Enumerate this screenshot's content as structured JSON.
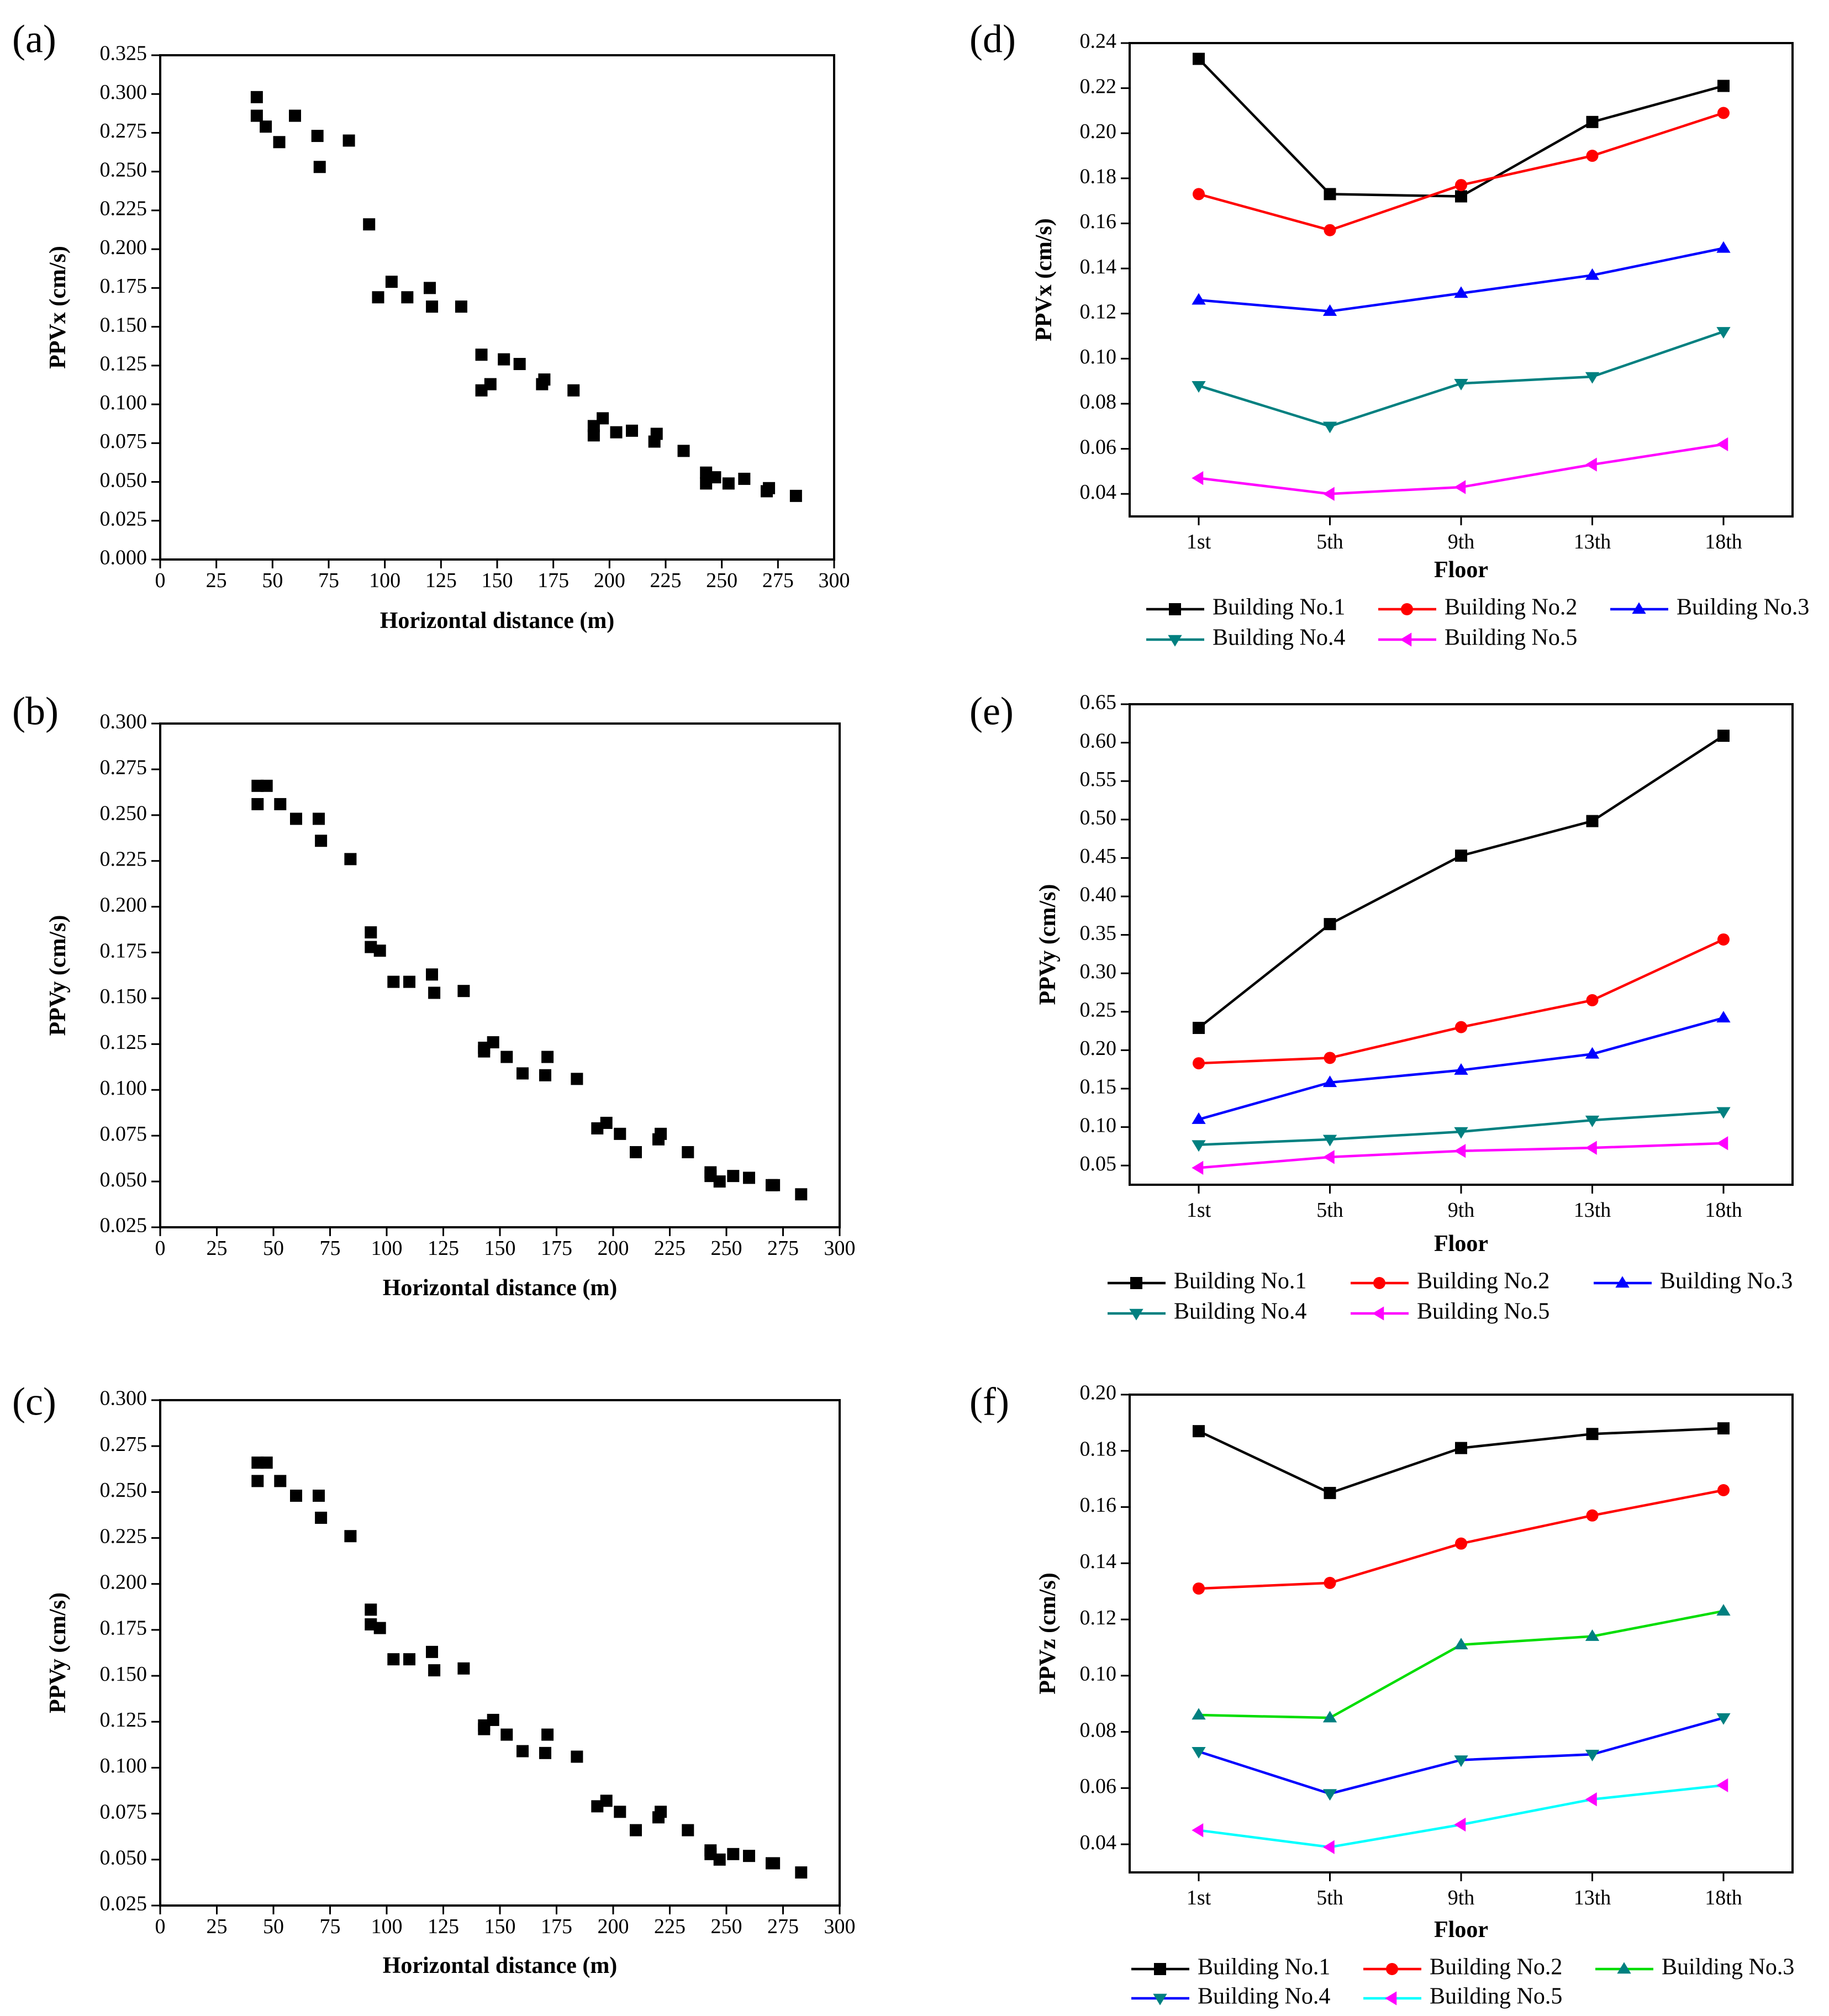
{
  "chart_data": [
    {
      "id": "a",
      "panel_label": "(a)",
      "type": "scatter",
      "xlabel": "Horizontal distance (m)",
      "ylabel": "PPVx (cm/s)",
      "xlim": [
        0,
        300
      ],
      "ylim": [
        0,
        0.325
      ],
      "xticks": [
        0,
        25,
        50,
        75,
        100,
        125,
        150,
        175,
        200,
        225,
        250,
        275,
        300
      ],
      "xtick_labels": [
        "0",
        "25",
        "50",
        "75",
        "100",
        "125",
        "150",
        "175",
        "200",
        "225",
        "250",
        "275",
        "300"
      ],
      "yticks": [
        0,
        0.025,
        0.05,
        0.075,
        0.1,
        0.125,
        0.15,
        0.175,
        0.2,
        0.225,
        0.25,
        0.275,
        0.3,
        0.325
      ],
      "ytick_labels": [
        "0.000",
        "0.025",
        "0.050",
        "0.075",
        "0.100",
        "0.125",
        "0.150",
        "0.175",
        "0.200",
        "0.225",
        "0.250",
        "0.275",
        "0.300",
        "0.325"
      ],
      "marker_color": "#000000",
      "points": [
        [
          43,
          0.298
        ],
        [
          43,
          0.286
        ],
        [
          47,
          0.279
        ],
        [
          53,
          0.269
        ],
        [
          60,
          0.286
        ],
        [
          70,
          0.273
        ],
        [
          71,
          0.253
        ],
        [
          84,
          0.27
        ],
        [
          93,
          0.216
        ],
        [
          97,
          0.169
        ],
        [
          103,
          0.179
        ],
        [
          110,
          0.169
        ],
        [
          120,
          0.175
        ],
        [
          121,
          0.163
        ],
        [
          134,
          0.163
        ],
        [
          143,
          0.132
        ],
        [
          143,
          0.109
        ],
        [
          147,
          0.113
        ],
        [
          153,
          0.129
        ],
        [
          160,
          0.126
        ],
        [
          170,
          0.113
        ],
        [
          171,
          0.116
        ],
        [
          184,
          0.109
        ],
        [
          193,
          0.086
        ],
        [
          193,
          0.08
        ],
        [
          197,
          0.091
        ],
        [
          203,
          0.082
        ],
        [
          210,
          0.083
        ],
        [
          220,
          0.076
        ],
        [
          221,
          0.081
        ],
        [
          233,
          0.07
        ],
        [
          243,
          0.056
        ],
        [
          243,
          0.049
        ],
        [
          247,
          0.053
        ],
        [
          253,
          0.049
        ],
        [
          260,
          0.052
        ],
        [
          270,
          0.044
        ],
        [
          271,
          0.046
        ],
        [
          283,
          0.041
        ]
      ]
    },
    {
      "id": "b",
      "panel_label": "(b)",
      "type": "scatter",
      "xlabel": "Horizontal distance (m)",
      "ylabel": "PPVy (cm/s)",
      "xlim": [
        0,
        300
      ],
      "ylim": [
        0.025,
        0.3
      ],
      "xticks": [
        0,
        25,
        50,
        75,
        100,
        125,
        150,
        175,
        200,
        225,
        250,
        275,
        300
      ],
      "xtick_labels": [
        "0",
        "25",
        "50",
        "75",
        "100",
        "125",
        "150",
        "175",
        "200",
        "225",
        "250",
        "275",
        "300"
      ],
      "yticks": [
        0.025,
        0.05,
        0.075,
        0.1,
        0.125,
        0.15,
        0.175,
        0.2,
        0.225,
        0.25,
        0.275,
        0.3
      ],
      "ytick_labels": [
        "0.025",
        "0.050",
        "0.075",
        "0.100",
        "0.125",
        "0.150",
        "0.175",
        "0.200",
        "0.225",
        "0.250",
        "0.275",
        "0.300"
      ],
      "marker_color": "#000000",
      "points": [
        [
          43,
          0.266
        ],
        [
          43,
          0.256
        ],
        [
          47,
          0.266
        ],
        [
          53,
          0.256
        ],
        [
          60,
          0.248
        ],
        [
          70,
          0.248
        ],
        [
          71,
          0.236
        ],
        [
          84,
          0.226
        ],
        [
          93,
          0.186
        ],
        [
          93,
          0.178
        ],
        [
          97,
          0.176
        ],
        [
          103,
          0.159
        ],
        [
          110,
          0.159
        ],
        [
          120,
          0.163
        ],
        [
          121,
          0.153
        ],
        [
          134,
          0.154
        ],
        [
          143,
          0.121
        ],
        [
          143,
          0.123
        ],
        [
          147,
          0.126
        ],
        [
          153,
          0.118
        ],
        [
          160,
          0.109
        ],
        [
          170,
          0.108
        ],
        [
          171,
          0.118
        ],
        [
          184,
          0.106
        ],
        [
          193,
          0.079
        ],
        [
          197,
          0.082
        ],
        [
          203,
          0.076
        ],
        [
          210,
          0.066
        ],
        [
          220,
          0.073
        ],
        [
          221,
          0.076
        ],
        [
          233,
          0.066
        ],
        [
          243,
          0.055
        ],
        [
          243,
          0.053
        ],
        [
          247,
          0.05
        ],
        [
          253,
          0.053
        ],
        [
          260,
          0.052
        ],
        [
          270,
          0.048
        ],
        [
          271,
          0.048
        ],
        [
          283,
          0.043
        ]
      ]
    },
    {
      "id": "c",
      "panel_label": "(c)",
      "type": "scatter",
      "xlabel": "Horizontal distance (m)",
      "ylabel": "PPVy (cm/s)",
      "xlim": [
        0,
        300
      ],
      "ylim": [
        0.025,
        0.3
      ],
      "xticks": [
        0,
        25,
        50,
        75,
        100,
        125,
        150,
        175,
        200,
        225,
        250,
        275,
        300
      ],
      "xtick_labels": [
        "0",
        "25",
        "50",
        "75",
        "100",
        "125",
        "150",
        "175",
        "200",
        "225",
        "250",
        "275",
        "300"
      ],
      "yticks": [
        0.025,
        0.05,
        0.075,
        0.1,
        0.125,
        0.15,
        0.175,
        0.2,
        0.225,
        0.25,
        0.275,
        0.3
      ],
      "ytick_labels": [
        "0.025",
        "0.050",
        "0.075",
        "0.100",
        "0.125",
        "0.150",
        "0.175",
        "0.200",
        "0.225",
        "0.250",
        "0.275",
        "0.300"
      ],
      "marker_color": "#000000",
      "points": [
        [
          43,
          0.266
        ],
        [
          43,
          0.256
        ],
        [
          47,
          0.266
        ],
        [
          53,
          0.256
        ],
        [
          60,
          0.248
        ],
        [
          70,
          0.248
        ],
        [
          71,
          0.236
        ],
        [
          84,
          0.226
        ],
        [
          93,
          0.186
        ],
        [
          93,
          0.178
        ],
        [
          97,
          0.176
        ],
        [
          103,
          0.159
        ],
        [
          110,
          0.159
        ],
        [
          120,
          0.163
        ],
        [
          121,
          0.153
        ],
        [
          134,
          0.154
        ],
        [
          143,
          0.121
        ],
        [
          143,
          0.123
        ],
        [
          147,
          0.126
        ],
        [
          153,
          0.118
        ],
        [
          160,
          0.109
        ],
        [
          170,
          0.108
        ],
        [
          171,
          0.118
        ],
        [
          184,
          0.106
        ],
        [
          193,
          0.079
        ],
        [
          197,
          0.082
        ],
        [
          203,
          0.076
        ],
        [
          210,
          0.066
        ],
        [
          220,
          0.073
        ],
        [
          221,
          0.076
        ],
        [
          233,
          0.066
        ],
        [
          243,
          0.055
        ],
        [
          243,
          0.053
        ],
        [
          247,
          0.05
        ],
        [
          253,
          0.053
        ],
        [
          260,
          0.052
        ],
        [
          270,
          0.048
        ],
        [
          271,
          0.048
        ],
        [
          283,
          0.043
        ]
      ]
    },
    {
      "id": "d",
      "panel_label": "(d)",
      "type": "line",
      "xlabel": "Floor",
      "ylabel": "PPVx (cm/s)",
      "categories": [
        "1st",
        "5th",
        "9th",
        "13th",
        "18th"
      ],
      "ylim": [
        0.03,
        0.24
      ],
      "yticks": [
        0.04,
        0.06,
        0.08,
        0.1,
        0.12,
        0.14,
        0.16,
        0.18,
        0.2,
        0.22,
        0.24
      ],
      "ytick_labels": [
        "0.04",
        "0.06",
        "0.08",
        "0.10",
        "0.12",
        "0.14",
        "0.16",
        "0.18",
        "0.20",
        "0.22",
        "0.24"
      ],
      "legend_position": "below",
      "series": [
        {
          "name": "Building No.1",
          "color": "#000000",
          "marker": "square",
          "values": [
            0.233,
            0.173,
            0.172,
            0.205,
            0.221
          ]
        },
        {
          "name": "Building No.2",
          "color": "#ff0000",
          "marker": "circle",
          "values": [
            0.173,
            0.157,
            0.177,
            0.19,
            0.209
          ]
        },
        {
          "name": "Building No.3",
          "color": "#0000ff",
          "marker": "triangle-up",
          "values": [
            0.126,
            0.121,
            0.129,
            0.137,
            0.149
          ]
        },
        {
          "name": "Building No.4",
          "color": "#008080",
          "marker": "triangle-down",
          "values": [
            0.088,
            0.07,
            0.089,
            0.092,
            0.112
          ]
        },
        {
          "name": "Building No.5",
          "color": "#ff00ff",
          "marker": "triangle-left",
          "values": [
            0.047,
            0.04,
            0.043,
            0.053,
            0.062
          ]
        }
      ]
    },
    {
      "id": "e",
      "panel_label": "(e)",
      "type": "line",
      "xlabel": "Floor",
      "ylabel": "PPVy (cm/s)",
      "categories": [
        "1st",
        "5th",
        "9th",
        "13th",
        "18th"
      ],
      "ylim": [
        0.025,
        0.65
      ],
      "yticks": [
        0.05,
        0.1,
        0.15,
        0.2,
        0.25,
        0.3,
        0.35,
        0.4,
        0.45,
        0.5,
        0.55,
        0.6,
        0.65
      ],
      "ytick_labels": [
        "0.05",
        "0.10",
        "0.15",
        "0.20",
        "0.25",
        "0.30",
        "0.35",
        "0.40",
        "0.45",
        "0.50",
        "0.55",
        "0.60",
        "0.65"
      ],
      "legend_position": "below",
      "series": [
        {
          "name": "Building No.1",
          "color": "#000000",
          "marker": "square",
          "values": [
            0.229,
            0.364,
            0.453,
            0.498,
            0.609
          ]
        },
        {
          "name": "Building No.2",
          "color": "#ff0000",
          "marker": "circle",
          "values": [
            0.183,
            0.19,
            0.23,
            0.265,
            0.344
          ]
        },
        {
          "name": "Building No.3",
          "color": "#0000ff",
          "marker": "triangle-up",
          "values": [
            0.11,
            0.158,
            0.174,
            0.195,
            0.242
          ]
        },
        {
          "name": "Building No.4",
          "color": "#008080",
          "marker": "triangle-down",
          "values": [
            0.077,
            0.084,
            0.094,
            0.109,
            0.12
          ]
        },
        {
          "name": "Building No.5",
          "color": "#ff00ff",
          "marker": "triangle-left",
          "values": [
            0.047,
            0.061,
            0.069,
            0.073,
            0.079
          ]
        }
      ]
    },
    {
      "id": "f",
      "panel_label": "(f)",
      "type": "line",
      "xlabel": "Floor",
      "ylabel": "PPVz (cm/s)",
      "categories": [
        "1st",
        "5th",
        "9th",
        "13th",
        "18th"
      ],
      "ylim": [
        0.03,
        0.2
      ],
      "yticks": [
        0.04,
        0.06,
        0.08,
        0.1,
        0.12,
        0.14,
        0.16,
        0.18,
        0.2
      ],
      "ytick_labels": [
        "0.04",
        "0.06",
        "0.08",
        "0.10",
        "0.12",
        "0.14",
        "0.16",
        "0.18",
        "0.20"
      ],
      "legend_position": "below",
      "series": [
        {
          "name": "Building No.1",
          "color": "#000000",
          "marker": "square",
          "values": [
            0.187,
            0.165,
            0.181,
            0.186,
            0.188
          ]
        },
        {
          "name": "Building No.2",
          "color": "#ff0000",
          "marker": "circle",
          "values": [
            0.131,
            0.133,
            0.147,
            0.157,
            0.166
          ]
        },
        {
          "name": "Building No.3",
          "color": "#00dd00",
          "marker": "triangle-up",
          "marker_color": "#008080",
          "values": [
            0.086,
            0.085,
            0.111,
            0.114,
            0.123
          ]
        },
        {
          "name": "Building No.4",
          "color": "#0000ff",
          "marker": "triangle-down",
          "marker_color": "#008080",
          "values": [
            0.073,
            0.058,
            0.07,
            0.072,
            0.085
          ]
        },
        {
          "name": "Building No.5",
          "color": "#00ffff",
          "marker": "triangle-left",
          "marker_color": "#ff00ff",
          "values": [
            0.045,
            0.039,
            0.047,
            0.056,
            0.061
          ]
        }
      ]
    }
  ]
}
